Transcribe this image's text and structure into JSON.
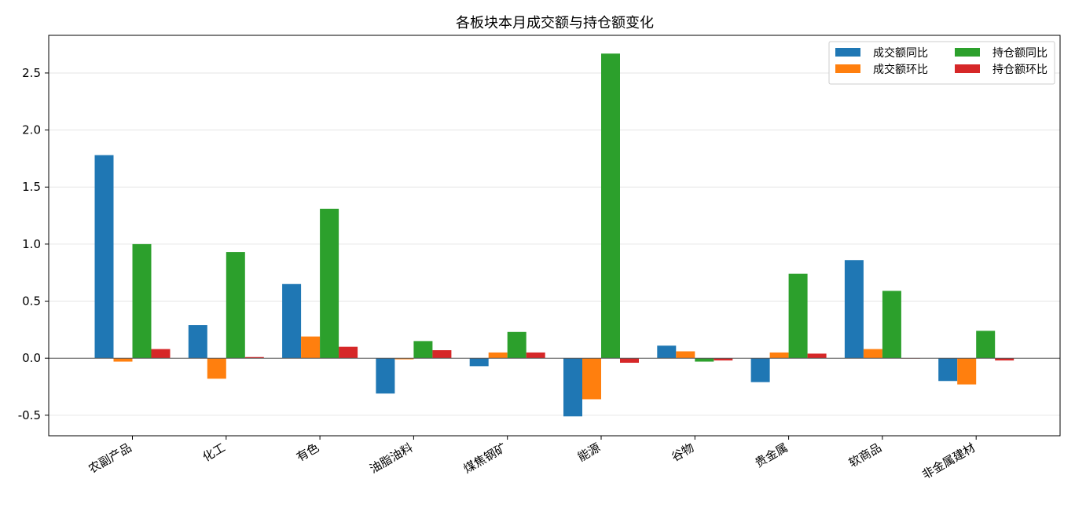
{
  "chart_data": {
    "type": "bar",
    "title": "各板块本月成交额与持仓额变化",
    "xlabel": "",
    "ylabel": "",
    "ylim": [
      -0.68,
      2.83
    ],
    "yticks": [
      -0.5,
      0.0,
      0.5,
      1.0,
      1.5,
      2.0,
      2.5
    ],
    "ytick_labels": [
      "-0.5",
      "0.0",
      "0.5",
      "1.0",
      "1.5",
      "2.0",
      "2.5"
    ],
    "grid": "horizontal",
    "legend_position": "top-right",
    "categories": [
      "农副产品",
      "化工",
      "有色",
      "油脂油料",
      "煤焦钢矿",
      "能源",
      "谷物",
      "贵金属",
      "软商品",
      "非金属建材"
    ],
    "series": [
      {
        "name": "成交额同比",
        "color": "#1f77b4",
        "values": [
          1.78,
          0.29,
          0.65,
          -0.31,
          -0.07,
          -0.51,
          0.11,
          -0.21,
          0.86,
          -0.2
        ]
      },
      {
        "name": "成交额环比",
        "color": "#ff7f0e",
        "values": [
          -0.03,
          -0.18,
          0.19,
          -0.01,
          0.05,
          -0.36,
          0.06,
          0.05,
          0.08,
          -0.23
        ]
      },
      {
        "name": "持仓额同比",
        "color": "#2ca02c",
        "values": [
          1.0,
          0.93,
          1.31,
          0.15,
          0.23,
          2.67,
          -0.03,
          0.74,
          0.59,
          0.24
        ]
      },
      {
        "name": "持仓额环比",
        "color": "#d62728",
        "values": [
          0.08,
          0.01,
          0.1,
          0.07,
          0.05,
          -0.04,
          -0.02,
          0.04,
          0.0,
          -0.02
        ]
      }
    ]
  }
}
